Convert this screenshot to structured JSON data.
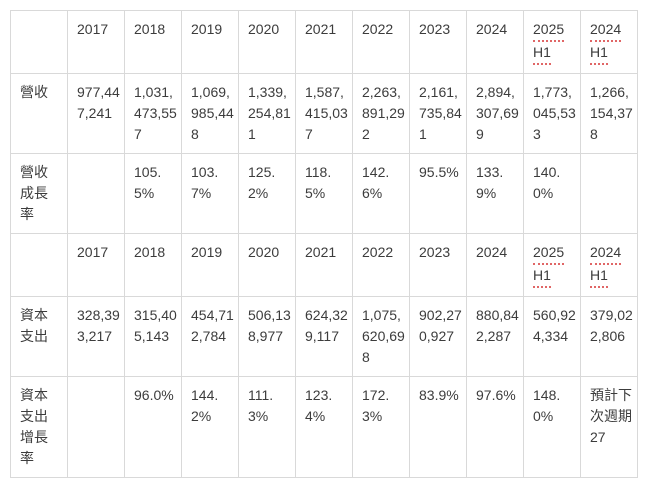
{
  "styles": {
    "background": "#ffffff",
    "text_color": "#3c3c3c",
    "border_color": "#d9d9d9",
    "spellcheck_underline_color": "#e06666"
  },
  "table": {
    "underlined_headers": [
      "2025 H1",
      "2024 H1"
    ],
    "rows": [
      {
        "kind": "header",
        "cells": [
          "",
          "2017",
          "2018",
          "2019",
          "2020",
          "2021",
          "2022",
          "2023",
          "2024",
          "2025 H1",
          "2024 H1"
        ]
      },
      {
        "kind": "data",
        "cells": [
          "營收",
          "977,447,241",
          "1,031,473,557",
          "1,069,985,448",
          "1,339,254,811",
          "1,587,415,037",
          "2,263,891,292",
          "2,161,735,841",
          "2,894,307,699",
          "1,773,045,533",
          "1,266,154,378"
        ]
      },
      {
        "kind": "data",
        "cells": [
          "營收成長率",
          "",
          "105.5%",
          "103.7%",
          "125.2%",
          "118.5%",
          "142.6%",
          "95.5%",
          "133.9%",
          "140.0%",
          ""
        ]
      },
      {
        "kind": "header",
        "cells": [
          "",
          "2017",
          "2018",
          "2019",
          "2020",
          "2021",
          "2022",
          "2023",
          "2024",
          "2025 H1",
          "2024 H1"
        ]
      },
      {
        "kind": "data",
        "cells": [
          "資本支出",
          "328,393,217",
          "315,405,143",
          "454,712,784",
          "506,138,977",
          "624,329,117",
          "1,075,620,698",
          "902,270,927",
          "880,842,287",
          "560,924,334",
          "379,022,806"
        ]
      },
      {
        "kind": "data",
        "cells": [
          "資本支出增長率",
          "",
          "96.0%",
          "144.2%",
          "111.3%",
          "123.4%",
          "172.3%",
          "83.9%",
          "97.6%",
          "148.0%",
          "預計下次週期27"
        ]
      }
    ]
  }
}
